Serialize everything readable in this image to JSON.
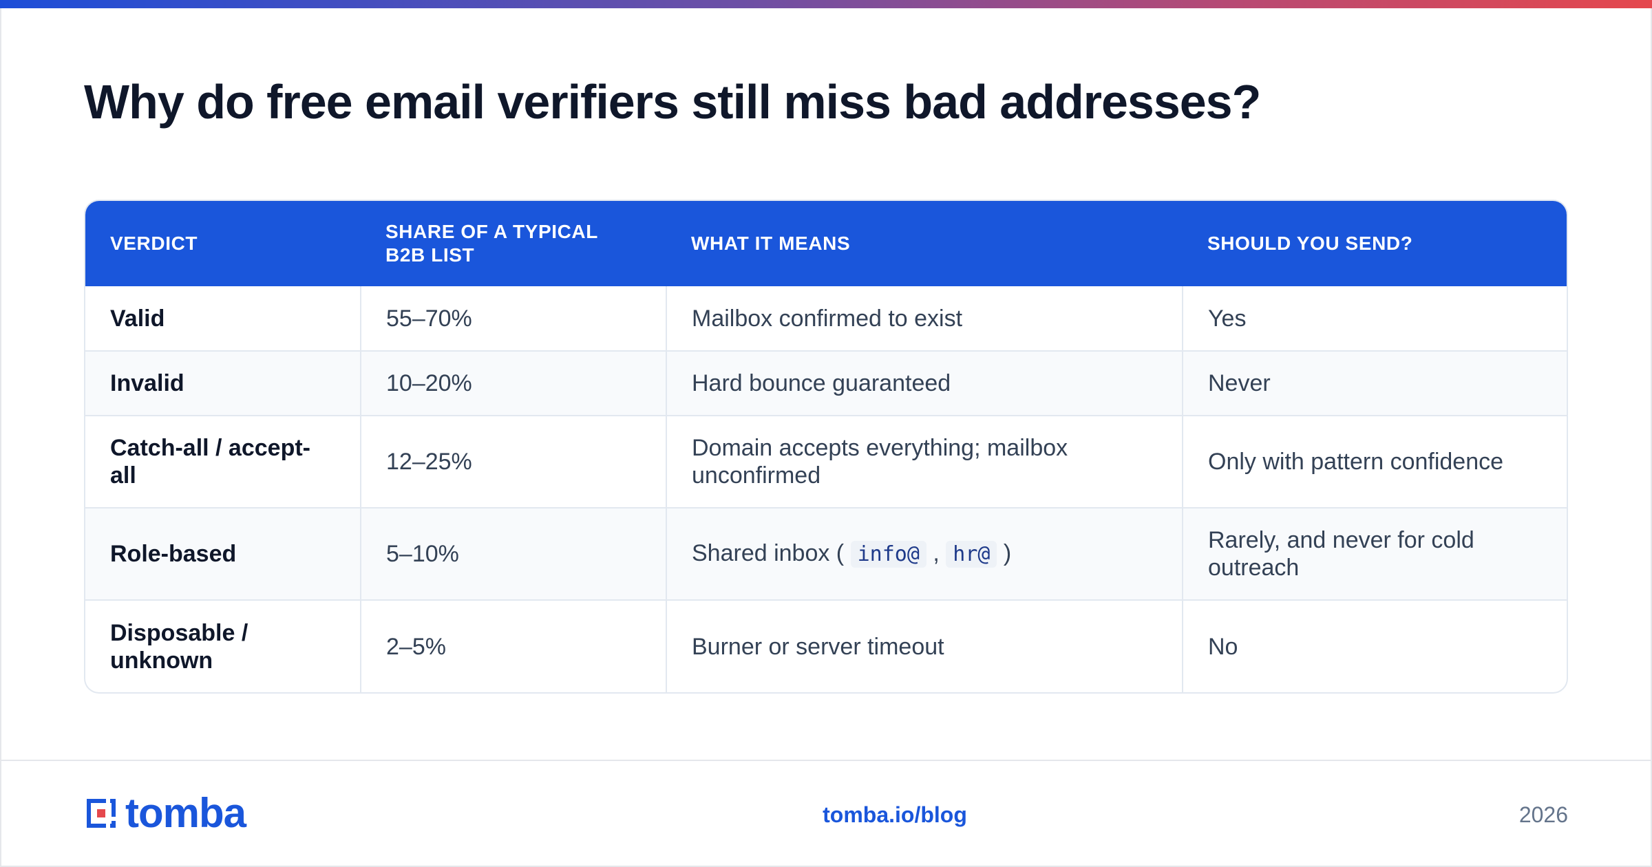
{
  "title": "Why do free email verifiers still miss bad addresses?",
  "table": {
    "headers": [
      "VERDICT",
      "SHARE OF A TYPICAL B2B LIST",
      "WHAT IT MEANS",
      "SHOULD YOU SEND?"
    ],
    "rows": [
      {
        "verdict": "Valid",
        "share": "55–70%",
        "meaning": "Mailbox confirmed to exist",
        "send": "Yes"
      },
      {
        "verdict": "Invalid",
        "share": "10–20%",
        "meaning": "Hard bounce guaranteed",
        "send": "Never"
      },
      {
        "verdict": "Catch-all / accept-all",
        "share": "12–25%",
        "meaning": "Domain accepts everything; mailbox unconfirmed",
        "send": "Only with pattern confidence"
      },
      {
        "verdict": "Role-based",
        "share": "5–10%",
        "meaning_prefix": "Shared inbox (",
        "meaning_code1": "info@",
        "meaning_sep": ",",
        "meaning_code2": "hr@",
        "meaning_suffix": ")",
        "send": "Rarely, and never for cold outreach"
      },
      {
        "verdict": "Disposable / unknown",
        "share": "2–5%",
        "meaning": "Burner or server timeout",
        "send": "No"
      }
    ]
  },
  "footer": {
    "logo_text": "tomba",
    "link": "tomba.io/blog",
    "year": "2026"
  },
  "colors": {
    "accent": "#1a56db",
    "gradient_start": "#1d4ed8",
    "gradient_end": "#e5484d"
  }
}
